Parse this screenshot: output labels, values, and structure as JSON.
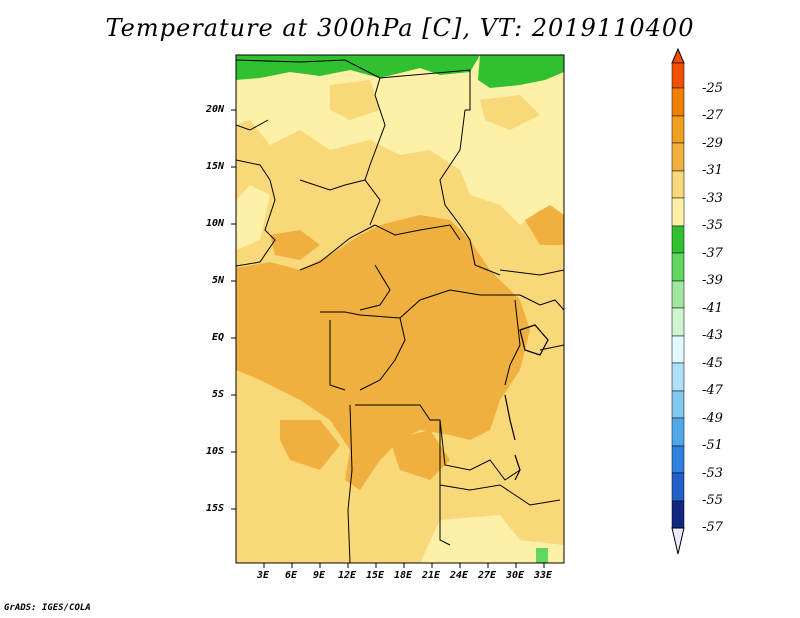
{
  "title": "Temperature at 300hPa [C], VT: 2019110400",
  "credit": "GrADS: IGES/COLA",
  "map": {
    "lat_labels": [
      "20N",
      "15N",
      "10N",
      "5N",
      "EQ",
      "5S",
      "10S",
      "15S"
    ],
    "lon_labels": [
      "3E",
      "6E",
      "9E",
      "12E",
      "15E",
      "18E",
      "21E",
      "24E",
      "27E",
      "30E",
      "33E"
    ]
  },
  "colorbar": {
    "labels": [
      "-25",
      "-27",
      "-29",
      "-31",
      "-33",
      "-35",
      "-37",
      "-39",
      "-41",
      "-43",
      "-45",
      "-47",
      "-49",
      "-51",
      "-53",
      "-55",
      "-57"
    ],
    "colors": [
      "#f05000",
      "#f08000",
      "#f0a020",
      "#f0b040",
      "#f8d878",
      "#fff0a8",
      "#30c030",
      "#60d860",
      "#a0e8a0",
      "#d0f4d0",
      "#e0f8ff",
      "#b0e0f8",
      "#80c8f0",
      "#50a8e8",
      "#3080e0",
      "#2060c8",
      "#1848b0",
      "#102880",
      "#e8e8ff"
    ]
  }
}
